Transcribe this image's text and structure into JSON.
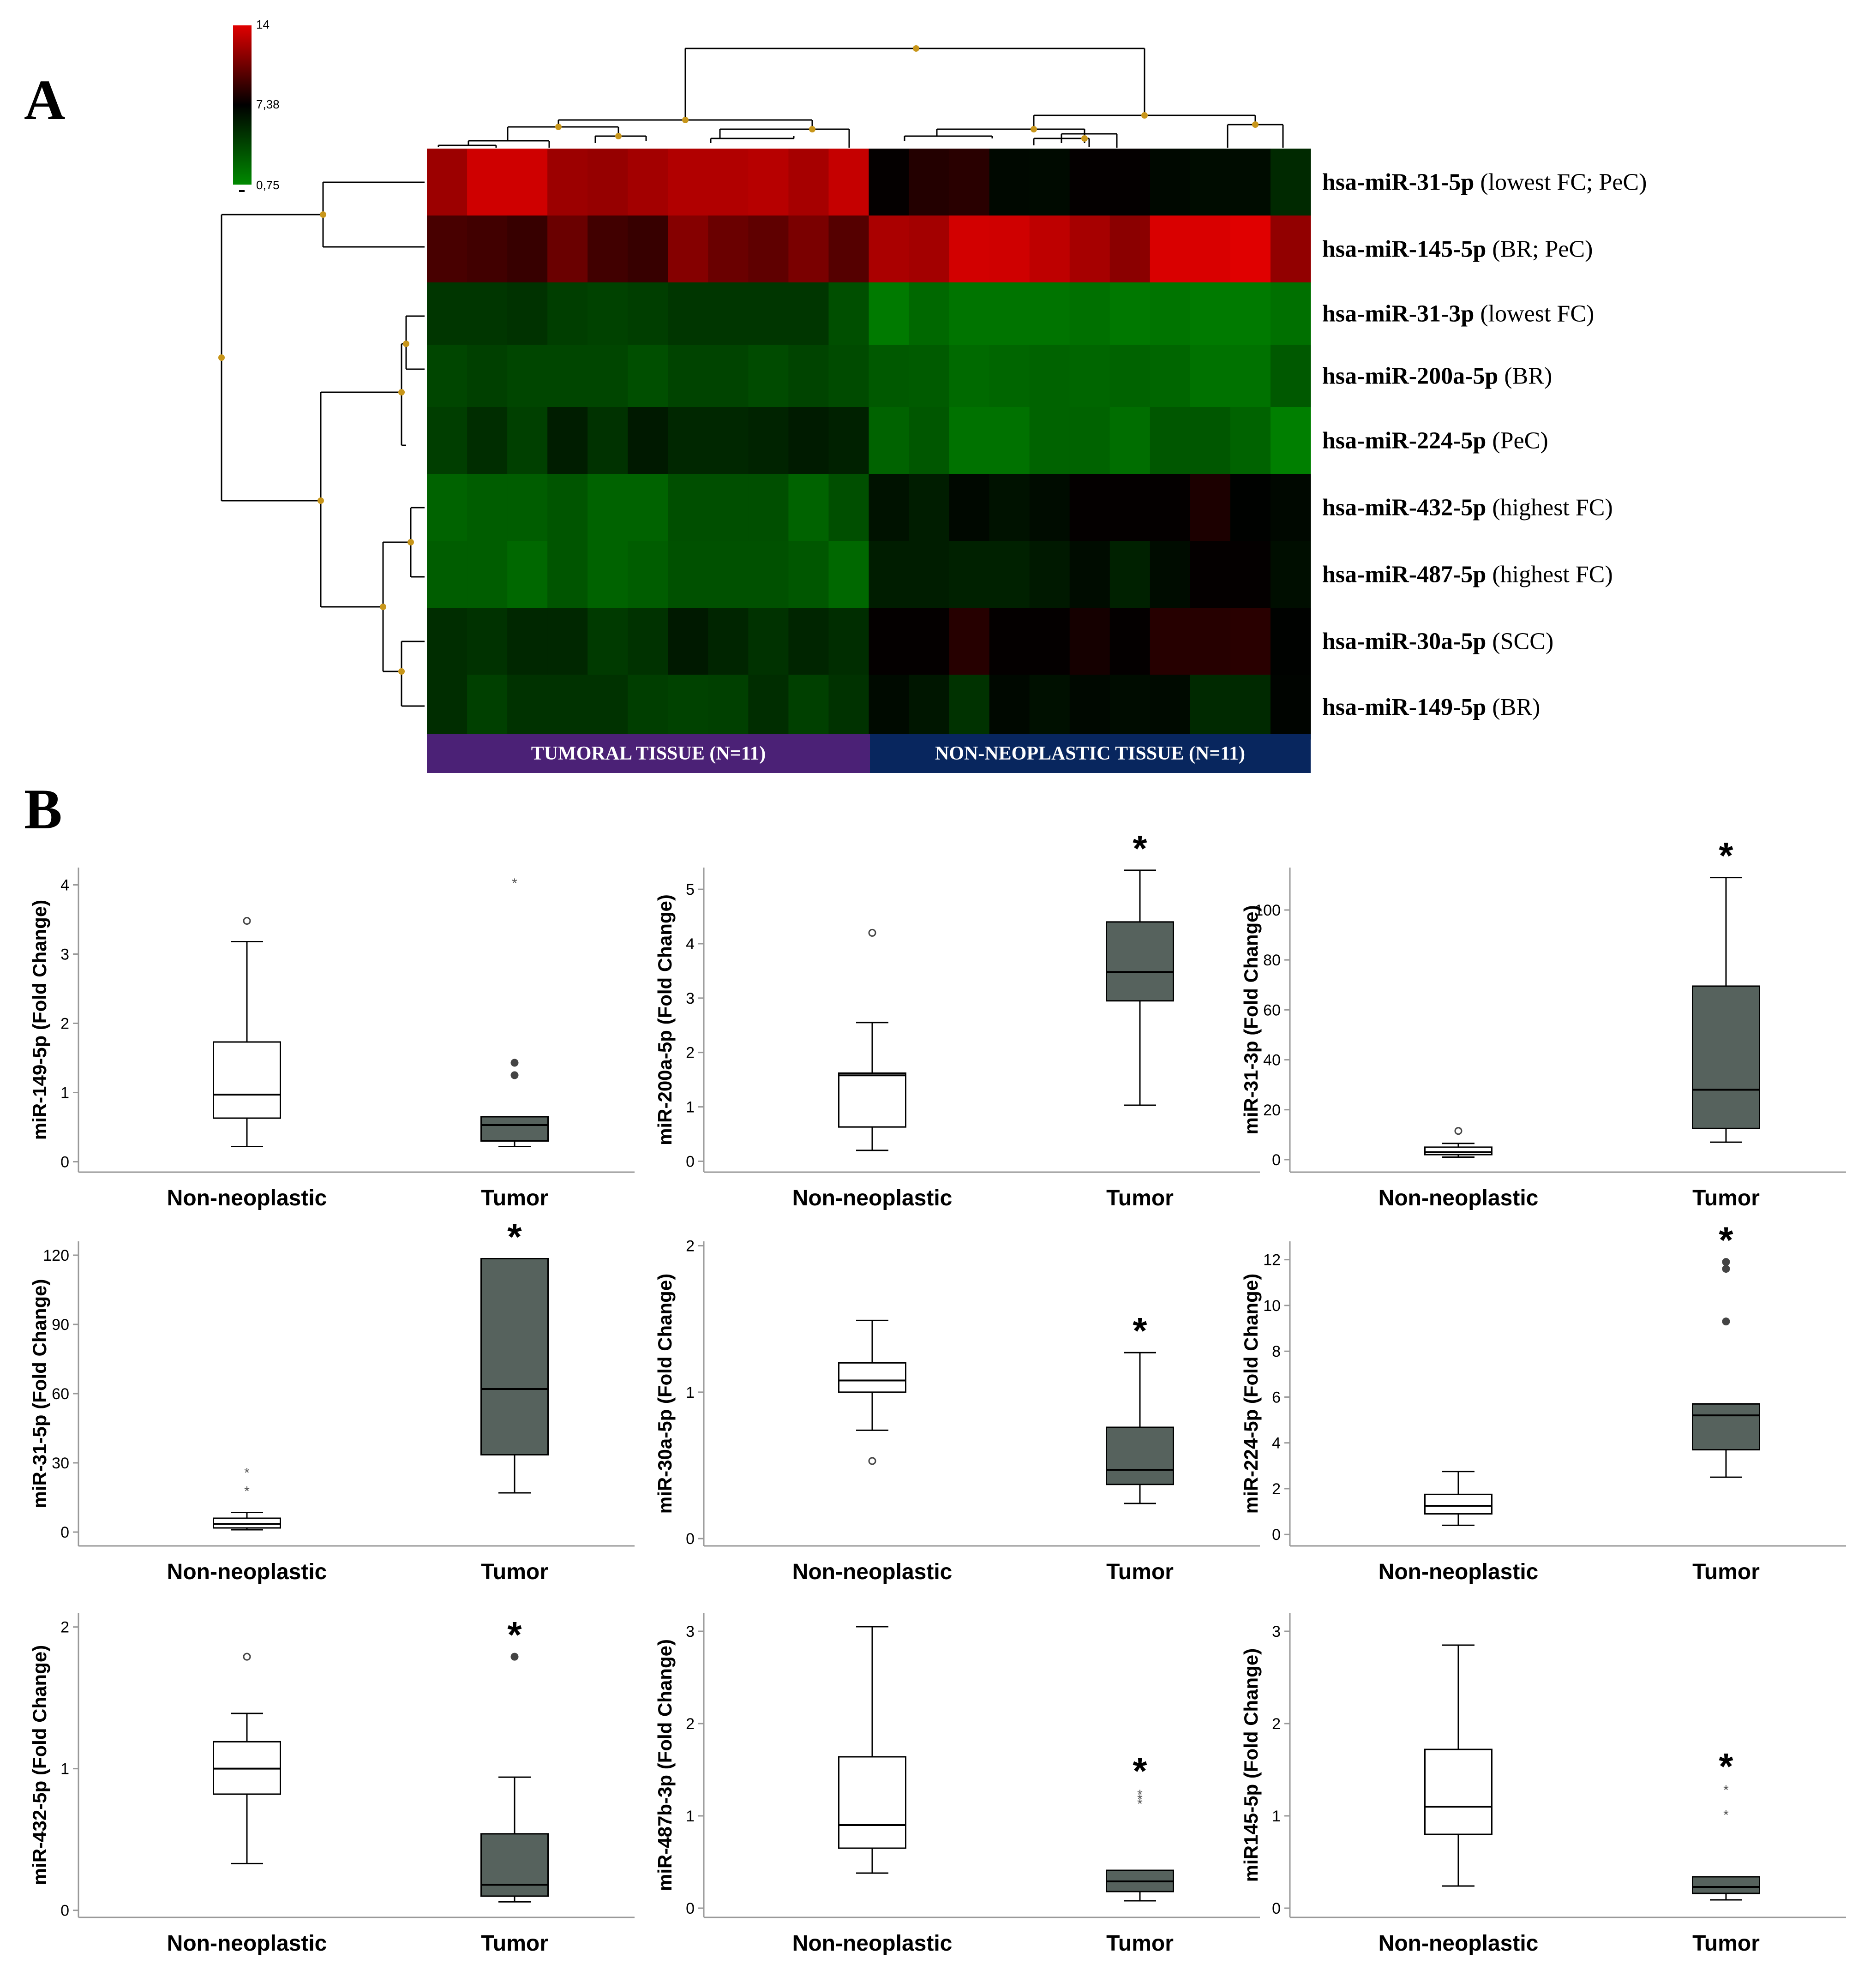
{
  "panel_labels": {
    "a": "A",
    "b": "B"
  },
  "colors": {
    "high": "#e00000",
    "mid": "#000000",
    "low": "#008a00",
    "tumoral_bar": "#4b2176",
    "nonneo_bar": "#08265e",
    "tumor_box": "#56625d",
    "node": "#c8961a"
  },
  "chart_data": [
    {
      "type": "heatmap",
      "title": "Hierarchical clustering heatmap",
      "color_scale": {
        "min": 0.75,
        "mid": 7.38,
        "max": 14,
        "min_label": "0,75",
        "mid_label": "7,38",
        "max_label": "14"
      },
      "group_labels": [
        "TUMORAL TISSUE (N=11)",
        "NON-NEOPLASTIC TISSUE (N=11)"
      ],
      "rows": [
        {
          "name": "hsa-miR-31-5p",
          "note": " (lowest FC; PeC)",
          "values": [
            12.0,
            13.5,
            13.5,
            12.0,
            11.8,
            12.2,
            12.6,
            12.6,
            12.8,
            12.3,
            13.2,
            7.5,
            8.4,
            8.6,
            7.0,
            6.9,
            7.5,
            7.5,
            7.0,
            6.8,
            6.8,
            5.4
          ]
        },
        {
          "name": "hsa-miR-145-5p",
          "note": " (BR; PeC)",
          "values": [
            9.5,
            9.3,
            9.0,
            10.5,
            9.3,
            9.0,
            11.3,
            10.5,
            10.2,
            11.0,
            9.9,
            12.4,
            12.2,
            13.6,
            13.5,
            13.0,
            12.3,
            11.5,
            13.8,
            13.8,
            14.0,
            11.7
          ]
        },
        {
          "name": "hsa-miR-31-3p",
          "note": " (lowest FC)",
          "values": [
            4.8,
            4.8,
            5.0,
            4.4,
            4.2,
            4.4,
            4.8,
            4.8,
            4.8,
            4.8,
            3.6,
            1.5,
            2.4,
            1.8,
            1.8,
            1.8,
            2.0,
            1.6,
            1.8,
            1.5,
            1.5,
            2.0
          ]
        },
        {
          "name": "hsa-miR-200a-5p",
          "note": " (BR)",
          "values": [
            4.0,
            4.3,
            4.0,
            4.0,
            4.0,
            3.6,
            4.1,
            4.1,
            3.8,
            4.1,
            3.8,
            3.1,
            3.0,
            2.3,
            2.5,
            2.6,
            2.5,
            2.6,
            2.5,
            1.9,
            1.9,
            3.1
          ]
        },
        {
          "name": "hsa-miR-224-5p",
          "note": " (PeC)",
          "values": [
            4.4,
            5.2,
            4.3,
            6.0,
            5.0,
            6.2,
            5.5,
            5.5,
            5.7,
            6.1,
            5.8,
            2.6,
            3.2,
            1.9,
            1.9,
            2.6,
            2.6,
            2.1,
            3.2,
            3.2,
            2.6,
            1.3
          ]
        },
        {
          "name": "hsa-miR-432-5p",
          "note": " (highest FC)",
          "values": [
            2.6,
            2.9,
            2.9,
            3.3,
            2.6,
            2.6,
            3.6,
            3.6,
            3.6,
            2.6,
            3.6,
            6.5,
            6.0,
            7.0,
            6.5,
            6.8,
            7.5,
            7.5,
            7.5,
            8.2,
            7.3,
            7.0
          ]
        },
        {
          "name": "hsa-miR-487-5p",
          "note": " (highest FC)",
          "values": [
            2.9,
            2.9,
            2.4,
            3.3,
            2.6,
            2.9,
            3.5,
            3.5,
            3.5,
            3.2,
            2.4,
            6.0,
            6.0,
            5.8,
            5.8,
            6.2,
            6.8,
            5.8,
            6.8,
            7.5,
            7.5,
            6.7
          ]
        },
        {
          "name": "hsa-miR-30a-5p",
          "note": " (SCC)",
          "values": [
            5.2,
            5.0,
            5.5,
            5.5,
            4.6,
            5.0,
            6.2,
            5.6,
            5.0,
            5.6,
            5.2,
            7.5,
            7.5,
            8.5,
            7.5,
            7.5,
            8.0,
            7.5,
            8.5,
            8.5,
            8.6,
            7.3
          ]
        },
        {
          "name": "hsa-miR-149-5p",
          "note": " (BR)",
          "values": [
            5.2,
            4.3,
            5.0,
            5.0,
            5.0,
            4.4,
            4.2,
            4.3,
            5.2,
            4.3,
            5.0,
            6.9,
            6.3,
            5.0,
            7.0,
            6.6,
            7.0,
            6.8,
            6.9,
            5.4,
            5.4,
            7.2
          ]
        }
      ]
    },
    {
      "type": "box",
      "ylabel": "miR-149-5p (Fold Change)",
      "categories": [
        "Non-neoplastic",
        "Tumor"
      ],
      "yticks": [
        0,
        1,
        2,
        3,
        4
      ],
      "ytick_labels": [
        "0",
        "1",
        "2",
        "3",
        "4"
      ],
      "ylim": [
        -0.15,
        4.25
      ],
      "significant": false,
      "boxes": [
        {
          "whisker_low": 0.22,
          "q1": 0.63,
          "median": 0.97,
          "q3": 1.73,
          "whisker_high": 3.18,
          "outliers": [
            3.48
          ],
          "extremes": []
        },
        {
          "whisker_low": 0.22,
          "q1": 0.3,
          "median": 0.53,
          "q3": 0.65,
          "whisker_high": 0.65,
          "outliers": [
            1.43,
            1.25
          ],
          "extremes": [
            4.05
          ]
        }
      ]
    },
    {
      "type": "box",
      "ylabel": "miR-200a-5p (Fold Change)",
      "categories": [
        "Non-neoplastic",
        "Tumor"
      ],
      "yticks": [
        0,
        1,
        2,
        3,
        4,
        5
      ],
      "ytick_labels": [
        "0",
        "1",
        "2",
        "3",
        "4",
        "5"
      ],
      "ylim": [
        -0.2,
        5.4
      ],
      "significant": true,
      "boxes": [
        {
          "whisker_low": 0.2,
          "q1": 0.63,
          "median": 1.58,
          "q3": 1.62,
          "whisker_high": 2.55,
          "outliers": [
            4.2
          ],
          "extremes": []
        },
        {
          "whisker_low": 1.03,
          "q1": 2.95,
          "median": 3.48,
          "q3": 4.4,
          "whisker_high": 5.35,
          "outliers": [],
          "extremes": []
        }
      ]
    },
    {
      "type": "box",
      "ylabel": "miR-31-3p (Fold Change)",
      "categories": [
        "Non-neoplastic",
        "Tumor"
      ],
      "yticks": [
        0,
        20,
        40,
        60,
        80,
        100
      ],
      "ytick_labels": [
        "0",
        "20",
        "40",
        "60",
        "80",
        "100"
      ],
      "ylim": [
        -5,
        117
      ],
      "significant": true,
      "boxes": [
        {
          "whisker_low": 1.0,
          "q1": 2.0,
          "median": 3.0,
          "q3": 5.0,
          "whisker_high": 6.5,
          "outliers": [
            11.5
          ],
          "extremes": []
        },
        {
          "whisker_low": 7.0,
          "q1": 12.5,
          "median": 28.0,
          "q3": 69.5,
          "whisker_high": 113.0,
          "outliers": [],
          "extremes": []
        }
      ]
    },
    {
      "type": "box",
      "ylabel": "miR-31-5p (Fold Change)",
      "categories": [
        "Non-neoplastic",
        "Tumor"
      ],
      "yticks": [
        0,
        30,
        60,
        90,
        120
      ],
      "ytick_labels": [
        "0",
        "30",
        "60",
        "90",
        "120"
      ],
      "ylim": [
        -6,
        126
      ],
      "significant": true,
      "boxes": [
        {
          "whisker_low": 1.0,
          "q1": 1.8,
          "median": 3.5,
          "q3": 6.0,
          "whisker_high": 8.5,
          "outliers": [],
          "extremes": [
            26.5,
            18.5
          ]
        },
        {
          "whisker_low": 17.0,
          "q1": 33.5,
          "median": 62.0,
          "q3": 118.5,
          "whisker_high": 118.5,
          "outliers": [],
          "extremes": []
        }
      ]
    },
    {
      "type": "box",
      "ylabel": "miR-30a-5p (Fold Change)",
      "categories": [
        "Non-neoplastic",
        "Tumor"
      ],
      "yticks": [
        0,
        1,
        2
      ],
      "ytick_labels": [
        "0",
        "1",
        "2"
      ],
      "ylim": [
        -0.05,
        2.03
      ],
      "significant": true,
      "boxes": [
        {
          "whisker_low": 0.74,
          "q1": 1.0,
          "median": 1.08,
          "q3": 1.2,
          "whisker_high": 1.49,
          "outliers": [
            0.53
          ],
          "extremes": []
        },
        {
          "whisker_low": 0.24,
          "q1": 0.37,
          "median": 0.47,
          "q3": 0.76,
          "whisker_high": 1.27,
          "outliers": [],
          "extremes": []
        }
      ]
    },
    {
      "type": "box",
      "ylabel": "miR-224-5p (Fold Change)",
      "categories": [
        "Non-neoplastic",
        "Tumor"
      ],
      "yticks": [
        0,
        2,
        4,
        6,
        8,
        10,
        12
      ],
      "ytick_labels": [
        "0",
        "2",
        "4",
        "6",
        "8",
        "10",
        "12"
      ],
      "ylim": [
        -0.5,
        12.8
      ],
      "significant": true,
      "boxes": [
        {
          "whisker_low": 0.4,
          "q1": 0.9,
          "median": 1.25,
          "q3": 1.75,
          "whisker_high": 2.75,
          "outliers": [],
          "extremes": []
        },
        {
          "whisker_low": 2.5,
          "q1": 3.7,
          "median": 5.2,
          "q3": 5.7,
          "whisker_high": 5.7,
          "outliers": [
            11.9,
            11.6,
            9.3
          ],
          "extremes": []
        }
      ]
    },
    {
      "type": "box",
      "ylabel": "miR-432-5p (Fold Change)",
      "categories": [
        "Non-neoplastic",
        "Tumor"
      ],
      "yticks": [
        0,
        1,
        2
      ],
      "ytick_labels": [
        "0",
        "1",
        "2"
      ],
      "ylim": [
        -0.05,
        2.1
      ],
      "significant": true,
      "boxes": [
        {
          "whisker_low": 0.33,
          "q1": 0.82,
          "median": 1.0,
          "q3": 1.19,
          "whisker_high": 1.39,
          "outliers": [
            1.79
          ],
          "extremes": []
        },
        {
          "whisker_low": 0.06,
          "q1": 0.1,
          "median": 0.18,
          "q3": 0.54,
          "whisker_high": 0.94,
          "outliers": [
            1.79
          ],
          "extremes": []
        }
      ]
    },
    {
      "type": "box",
      "ylabel": "miR-487b-3p (Fold Change)",
      "categories": [
        "Non-neoplastic",
        "Tumor"
      ],
      "yticks": [
        0,
        1,
        2,
        3
      ],
      "ytick_labels": [
        "0",
        "1",
        "2",
        "3"
      ],
      "ylim": [
        -0.1,
        3.2
      ],
      "significant": true,
      "boxes": [
        {
          "whisker_low": 0.38,
          "q1": 0.65,
          "median": 0.9,
          "q3": 1.64,
          "whisker_high": 3.05,
          "outliers": [],
          "extremes": []
        },
        {
          "whisker_low": 0.08,
          "q1": 0.18,
          "median": 0.29,
          "q3": 0.41,
          "whisker_high": 0.41,
          "outliers": [],
          "extremes": [
            1.25,
            1.2,
            1.15
          ]
        }
      ]
    },
    {
      "type": "box",
      "ylabel": "miR145-5p (Fold Change)",
      "categories": [
        "Non-neoplastic",
        "Tumor"
      ],
      "yticks": [
        0,
        1,
        2,
        3
      ],
      "ytick_labels": [
        "0",
        "1",
        "2",
        "3"
      ],
      "ylim": [
        -0.1,
        3.2
      ],
      "significant": true,
      "boxes": [
        {
          "whisker_low": 0.24,
          "q1": 0.8,
          "median": 1.1,
          "q3": 1.72,
          "whisker_high": 2.85,
          "outliers": [],
          "extremes": []
        },
        {
          "whisker_low": 0.09,
          "q1": 0.16,
          "median": 0.23,
          "q3": 0.34,
          "whisker_high": 0.34,
          "outliers": [],
          "extremes": [
            1.3,
            1.03
          ]
        }
      ]
    }
  ]
}
